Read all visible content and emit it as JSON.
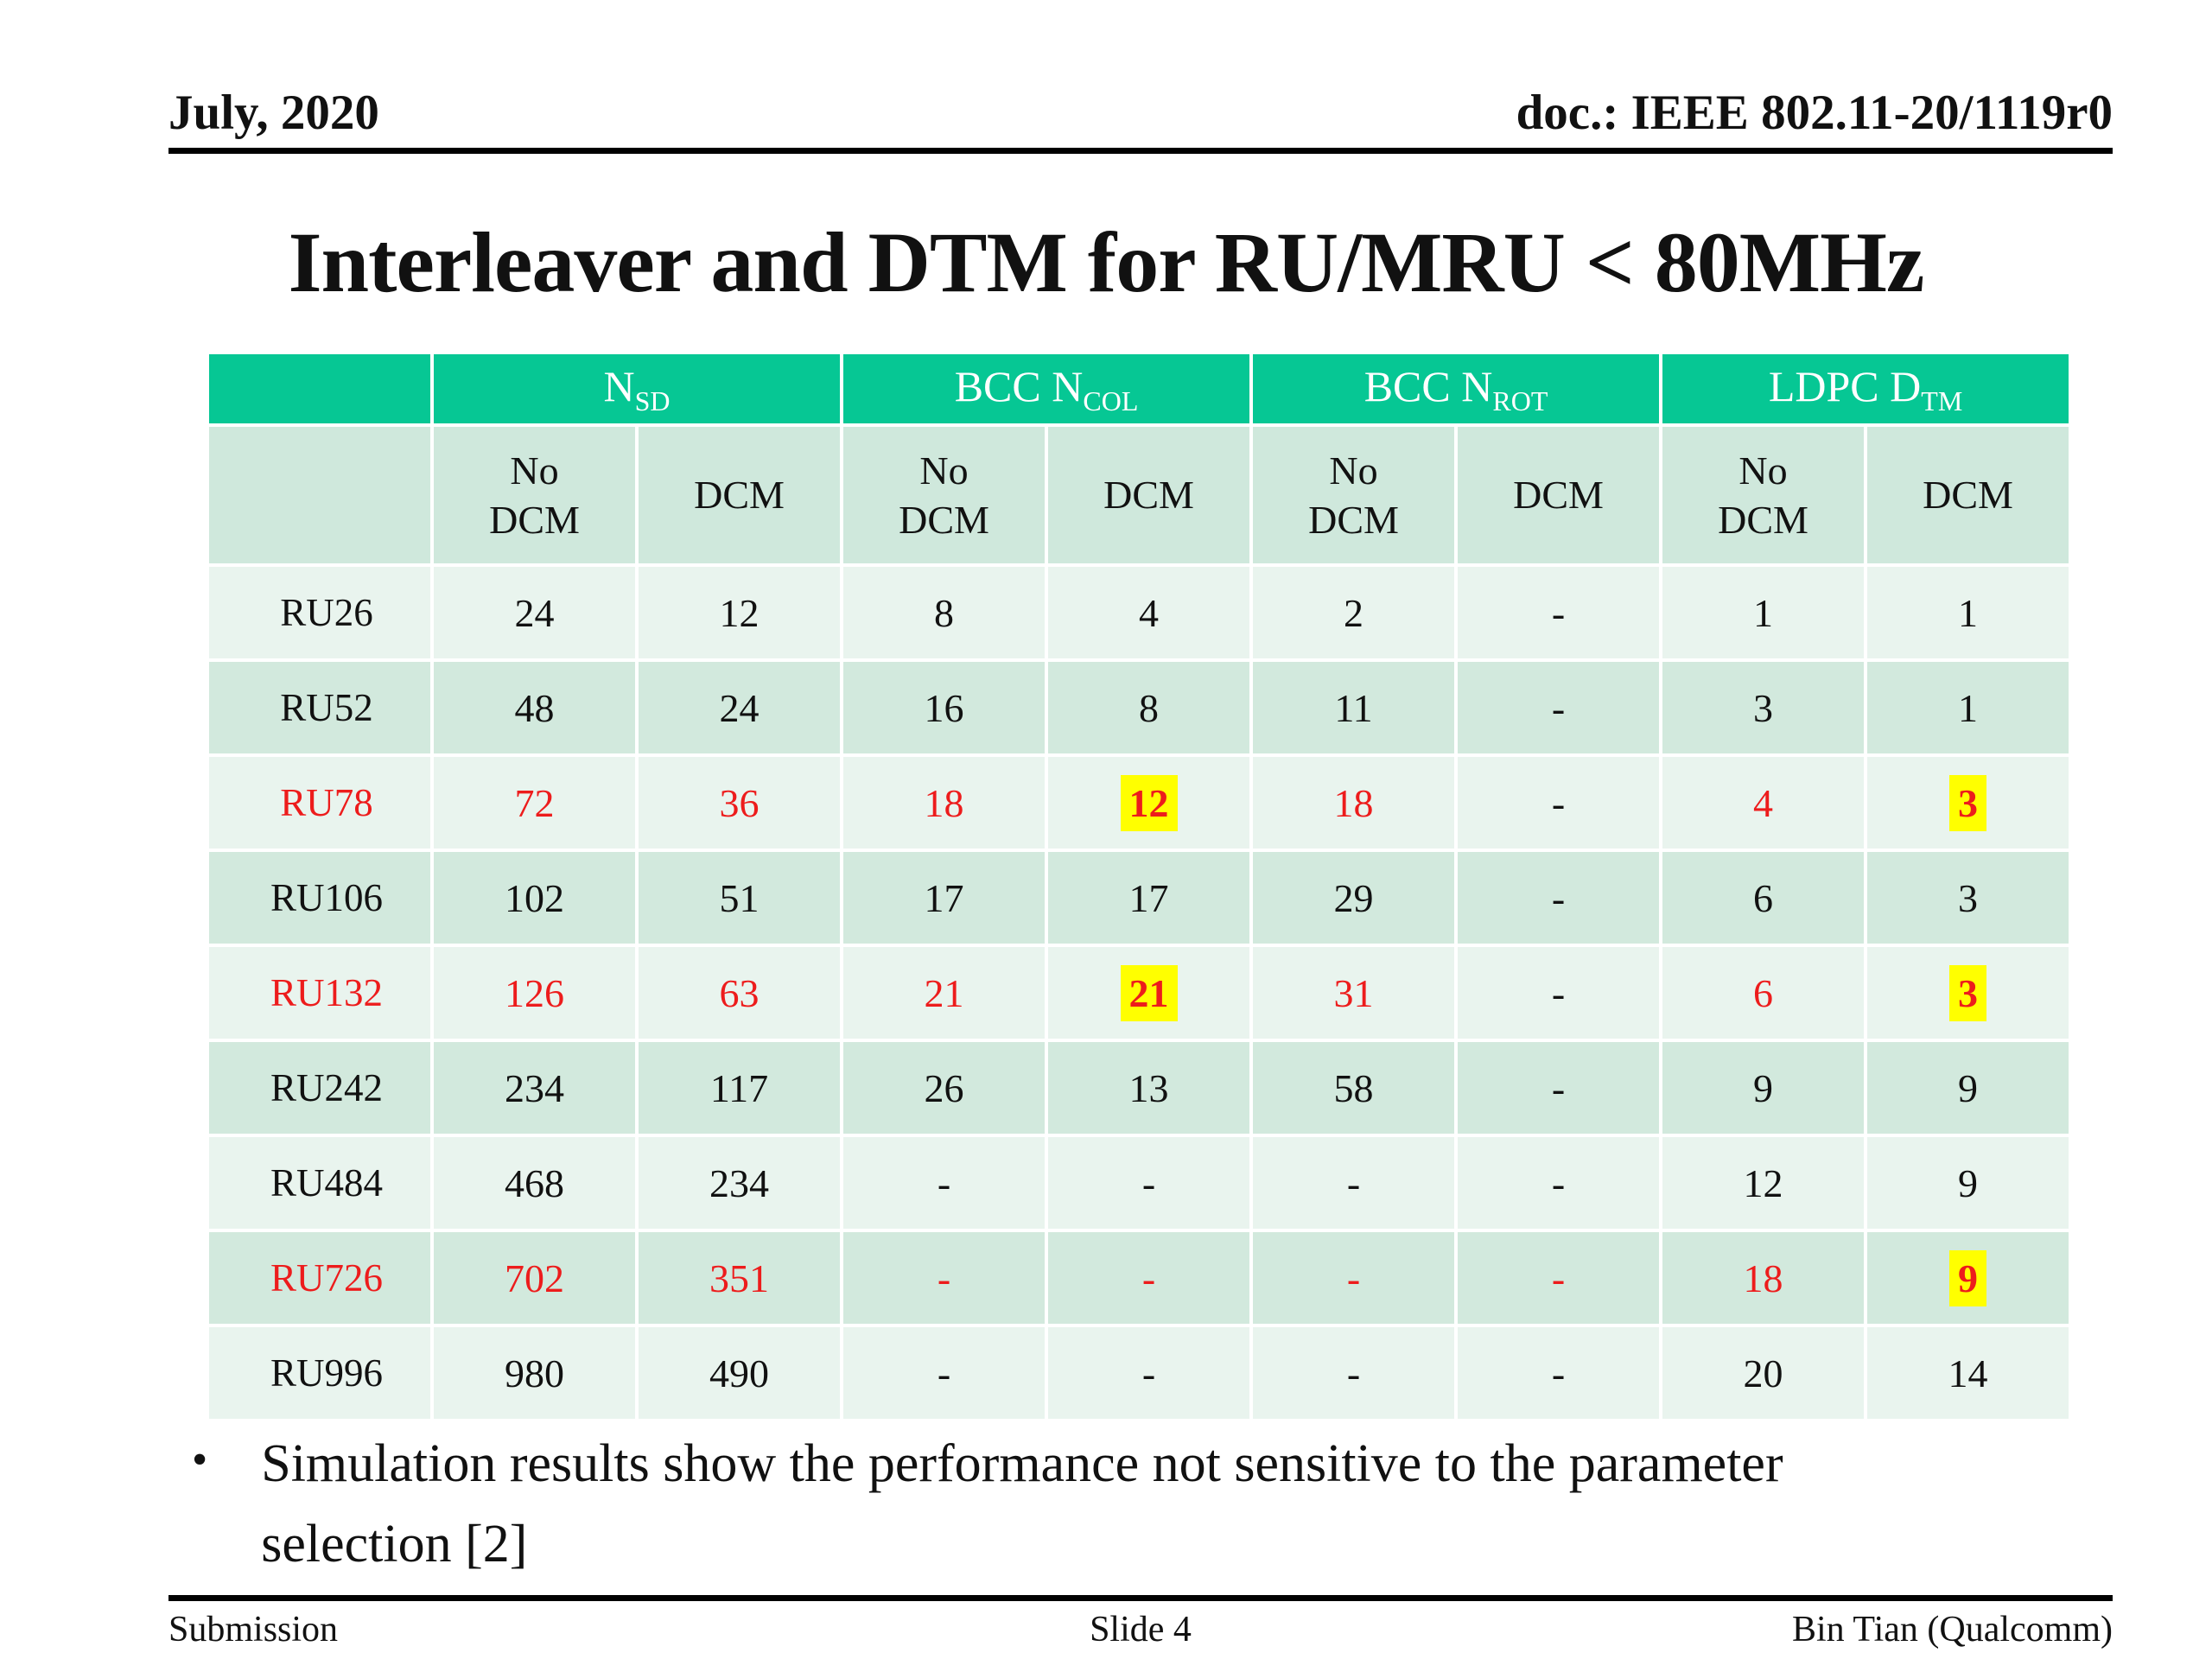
{
  "slide": {
    "header": {
      "left": "July, 2020",
      "right": "doc.: IEEE 802.11-20/1119r0"
    },
    "title": "Interleaver and DTM for RU/MRU < 80MHz",
    "bullet_char": "•",
    "bullet": "Simulation results show the performance not sensitive to the parameter\nselection [2]",
    "footer": {
      "left": "Submission",
      "center": "Slide 4",
      "right": "Bin Tian (Qualcomm)"
    }
  },
  "colors": {
    "header_green": "#06c794",
    "subheader_bg": "#cfe8dc",
    "row_light": "#e9f4ee",
    "row_dark": "#d2e9dd",
    "red": "#ed1c1c",
    "highlight_yellow": "#ffff00"
  },
  "table": {
    "corner_label": "",
    "groups": [
      {
        "label": "N",
        "sub": "SD"
      },
      {
        "label": "BCC N",
        "sub": "COL"
      },
      {
        "label": "BCC N",
        "sub": "ROT"
      },
      {
        "label": "LDPC D",
        "sub": "TM"
      }
    ],
    "col_headers": [
      "No\nDCM",
      "DCM",
      "No\nDCM",
      "DCM",
      "No\nDCM",
      "DCM",
      "No\nDCM",
      "DCM"
    ],
    "rows": [
      {
        "label": "RU26",
        "red": false,
        "cells": [
          {
            "v": "24"
          },
          {
            "v": "12"
          },
          {
            "v": "8"
          },
          {
            "v": "4"
          },
          {
            "v": "2"
          },
          {
            "v": "-"
          },
          {
            "v": "1"
          },
          {
            "v": "1"
          }
        ]
      },
      {
        "label": "RU52",
        "red": false,
        "cells": [
          {
            "v": "48"
          },
          {
            "v": "24"
          },
          {
            "v": "16"
          },
          {
            "v": "8"
          },
          {
            "v": "11"
          },
          {
            "v": "-"
          },
          {
            "v": "3"
          },
          {
            "v": "1"
          }
        ]
      },
      {
        "label": "RU78",
        "red": true,
        "cells": [
          {
            "v": "72",
            "red": true
          },
          {
            "v": "36",
            "red": true
          },
          {
            "v": "18",
            "red": true
          },
          {
            "v": "12",
            "red": true,
            "hl": true
          },
          {
            "v": "18",
            "red": true
          },
          {
            "v": "-"
          },
          {
            "v": "4",
            "red": true
          },
          {
            "v": "3",
            "red": true,
            "hl": true
          }
        ]
      },
      {
        "label": "RU106",
        "red": false,
        "cells": [
          {
            "v": "102"
          },
          {
            "v": "51"
          },
          {
            "v": "17"
          },
          {
            "v": "17"
          },
          {
            "v": "29"
          },
          {
            "v": "-"
          },
          {
            "v": "6"
          },
          {
            "v": "3"
          }
        ]
      },
      {
        "label": "RU132",
        "red": true,
        "cells": [
          {
            "v": "126",
            "red": true
          },
          {
            "v": "63",
            "red": true
          },
          {
            "v": "21",
            "red": true
          },
          {
            "v": "21",
            "red": true,
            "hl": true
          },
          {
            "v": "31",
            "red": true
          },
          {
            "v": "-"
          },
          {
            "v": "6",
            "red": true
          },
          {
            "v": "3",
            "red": true,
            "hl": true
          }
        ]
      },
      {
        "label": "RU242",
        "red": false,
        "cells": [
          {
            "v": "234"
          },
          {
            "v": "117"
          },
          {
            "v": "26"
          },
          {
            "v": "13"
          },
          {
            "v": "58"
          },
          {
            "v": "-"
          },
          {
            "v": "9"
          },
          {
            "v": "9"
          }
        ]
      },
      {
        "label": "RU484",
        "red": false,
        "cells": [
          {
            "v": "468"
          },
          {
            "v": "234"
          },
          {
            "v": "-"
          },
          {
            "v": "-"
          },
          {
            "v": "-"
          },
          {
            "v": "-"
          },
          {
            "v": "12"
          },
          {
            "v": "9"
          }
        ]
      },
      {
        "label": "RU726",
        "red": true,
        "cells": [
          {
            "v": "702",
            "red": true
          },
          {
            "v": "351",
            "red": true
          },
          {
            "v": "-",
            "red": true
          },
          {
            "v": "-",
            "red": true
          },
          {
            "v": "-",
            "red": true
          },
          {
            "v": "-",
            "red": true
          },
          {
            "v": "18",
            "red": true
          },
          {
            "v": "9",
            "red": true,
            "hl": true
          }
        ]
      },
      {
        "label": "RU996",
        "red": false,
        "cells": [
          {
            "v": "980"
          },
          {
            "v": "490"
          },
          {
            "v": "-"
          },
          {
            "v": "-"
          },
          {
            "v": "-"
          },
          {
            "v": "-"
          },
          {
            "v": "20"
          },
          {
            "v": "14"
          }
        ]
      }
    ]
  }
}
